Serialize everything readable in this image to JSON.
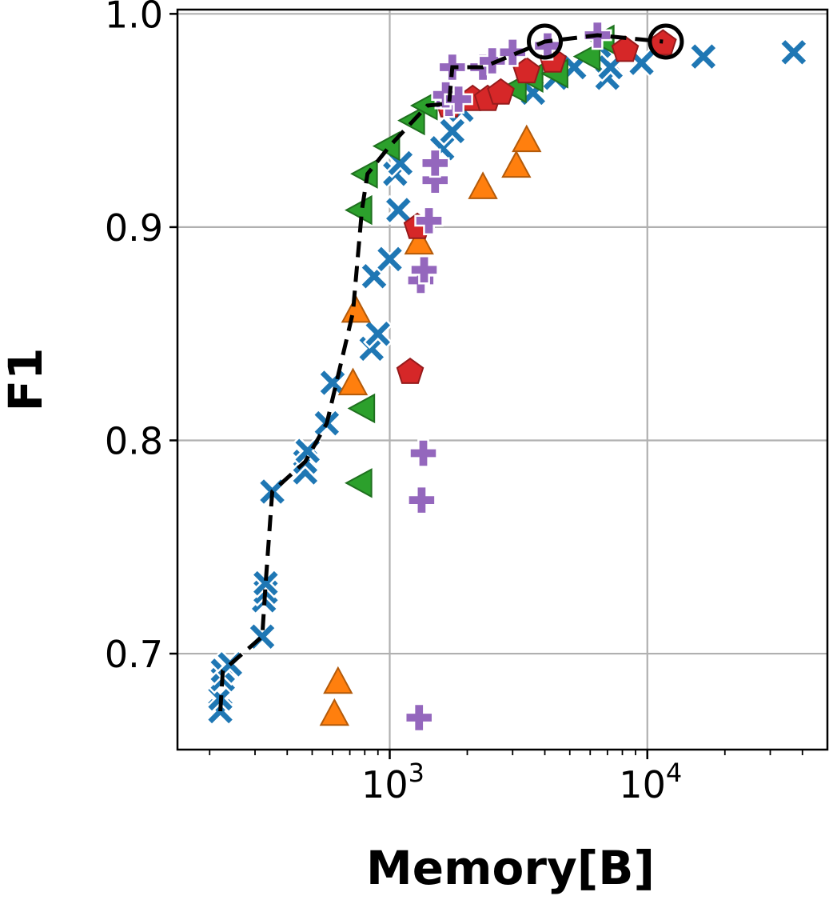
{
  "chart_data": {
    "type": "scatter",
    "xlabel": "Memory[B]",
    "ylabel": "F1",
    "xscale": "log",
    "xlim": [
      150,
      50000
    ],
    "ylim": [
      0.655,
      1.002
    ],
    "grid": true,
    "x_major_ticks": [
      {
        "value": 1000,
        "base": "10",
        "exp": "3"
      },
      {
        "value": 10000,
        "base": "10",
        "exp": "4"
      }
    ],
    "y_ticks": [
      {
        "value": 0.7,
        "label": "0.7"
      },
      {
        "value": 0.8,
        "label": "0.8"
      },
      {
        "value": 0.9,
        "label": "0.9"
      },
      {
        "value": 1.0,
        "label": "1.0"
      }
    ],
    "series": [
      {
        "marker": "X",
        "color": "#1f77b4",
        "points": [
          [
            220,
            0.673
          ],
          [
            220,
            0.679
          ],
          [
            225,
            0.688
          ],
          [
            225,
            0.692
          ],
          [
            240,
            0.695
          ],
          [
            320,
            0.708
          ],
          [
            325,
            0.725
          ],
          [
            330,
            0.729
          ],
          [
            330,
            0.733
          ],
          [
            350,
            0.776
          ],
          [
            470,
            0.785
          ],
          [
            470,
            0.79
          ],
          [
            480,
            0.795
          ],
          [
            570,
            0.808
          ],
          [
            600,
            0.827
          ],
          [
            850,
            0.843
          ],
          [
            900,
            0.85
          ],
          [
            870,
            0.877
          ],
          [
            1000,
            0.885
          ],
          [
            1080,
            0.908
          ],
          [
            1050,
            0.925
          ],
          [
            1100,
            0.93
          ],
          [
            1600,
            0.937
          ],
          [
            1750,
            0.945
          ],
          [
            1900,
            0.955
          ],
          [
            3600,
            0.963
          ],
          [
            4400,
            0.97
          ],
          [
            5200,
            0.975
          ],
          [
            7000,
            0.97
          ],
          [
            7200,
            0.975
          ],
          [
            9500,
            0.977
          ],
          [
            16500,
            0.98
          ],
          [
            37000,
            0.982
          ],
          [
            6500,
            0.985
          ]
        ]
      },
      {
        "marker": "^",
        "color": "#ff7f0e",
        "points": [
          [
            610,
            0.671
          ],
          [
            630,
            0.686
          ],
          [
            720,
            0.826
          ],
          [
            740,
            0.86
          ],
          [
            1300,
            0.892
          ],
          [
            2300,
            0.918
          ],
          [
            3100,
            0.928
          ],
          [
            3400,
            0.94
          ]
        ]
      },
      {
        "marker": "<",
        "color": "#2ca02c",
        "points": [
          [
            780,
            0.78
          ],
          [
            800,
            0.815
          ],
          [
            780,
            0.908
          ],
          [
            820,
            0.925
          ],
          [
            1000,
            0.938
          ],
          [
            1250,
            0.95
          ],
          [
            1400,
            0.957
          ],
          [
            3100,
            0.965
          ],
          [
            3600,
            0.97
          ],
          [
            4500,
            0.972
          ],
          [
            6000,
            0.98
          ],
          [
            6800,
            0.988
          ]
        ]
      },
      {
        "marker": "p",
        "color": "#d62728",
        "points": [
          [
            1200,
            0.832
          ],
          [
            1280,
            0.9
          ],
          [
            1700,
            0.957
          ],
          [
            2100,
            0.96
          ],
          [
            2400,
            0.96
          ],
          [
            2700,
            0.963
          ],
          [
            3400,
            0.973
          ],
          [
            4300,
            0.978
          ],
          [
            8200,
            0.983
          ],
          [
            11500,
            0.986
          ]
        ]
      },
      {
        "marker": "P",
        "color": "#9467bd",
        "points": [
          [
            1300,
            0.67
          ],
          [
            1330,
            0.772
          ],
          [
            1350,
            0.794
          ],
          [
            1320,
            0.875
          ],
          [
            1360,
            0.88
          ],
          [
            1420,
            0.903
          ],
          [
            1500,
            0.922
          ],
          [
            1500,
            0.93
          ],
          [
            1700,
            0.958
          ],
          [
            1650,
            0.962
          ],
          [
            1850,
            0.96
          ],
          [
            1750,
            0.975
          ],
          [
            2300,
            0.975
          ],
          [
            2500,
            0.978
          ],
          [
            3000,
            0.982
          ],
          [
            4100,
            0.985
          ],
          [
            6400,
            0.99
          ]
        ]
      }
    ],
    "pareto_line": {
      "style": "dashed",
      "color": "#000000",
      "points": [
        [
          220,
          0.673
        ],
        [
          225,
          0.692
        ],
        [
          320,
          0.708
        ],
        [
          330,
          0.733
        ],
        [
          350,
          0.776
        ],
        [
          470,
          0.79
        ],
        [
          570,
          0.808
        ],
        [
          720,
          0.86
        ],
        [
          780,
          0.908
        ],
        [
          820,
          0.925
        ],
        [
          1000,
          0.938
        ],
        [
          1400,
          0.957
        ],
        [
          1700,
          0.958
        ],
        [
          1750,
          0.975
        ],
        [
          2300,
          0.975
        ],
        [
          4000,
          0.987
        ],
        [
          6400,
          0.99
        ],
        [
          11500,
          0.987
        ]
      ]
    },
    "highlighted_points": [
      [
        4000,
        0.987
      ],
      [
        11800,
        0.987
      ]
    ]
  }
}
